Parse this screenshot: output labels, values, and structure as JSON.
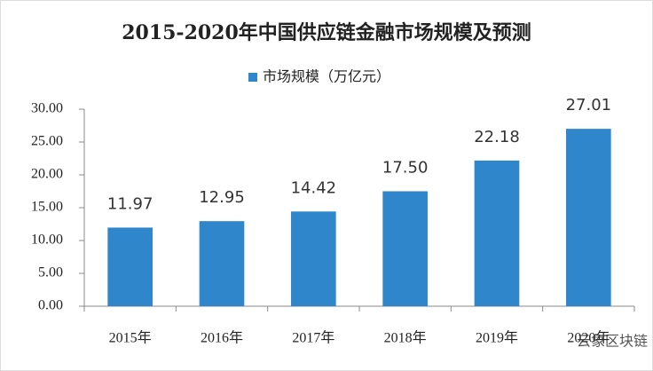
{
  "chart_data": {
    "type": "bar",
    "title": "2015-2020年中国供应链金融市场规模及预测",
    "categories": [
      "2015年",
      "2016年",
      "2017年",
      "2018年",
      "2019年",
      "2020年"
    ],
    "series": [
      {
        "name": "市场规模（万亿元）",
        "color": "#2f86cb",
        "values": [
          11.97,
          12.95,
          14.42,
          17.5,
          22.18,
          27.01
        ],
        "value_labels": [
          "11.97",
          "12.95",
          "14.42",
          "17.50",
          "22.18",
          "27.01"
        ]
      }
    ],
    "ylim": [
      0,
      30
    ],
    "yticks": [
      {
        "value": 0,
        "label": "0.00"
      },
      {
        "value": 5,
        "label": "5.00"
      },
      {
        "value": 10,
        "label": "10.00"
      },
      {
        "value": 15,
        "label": "15.00"
      },
      {
        "value": 20,
        "label": "20.00"
      },
      {
        "value": 25,
        "label": "25.00"
      },
      {
        "value": 30,
        "label": "30.00"
      }
    ],
    "watermark": "云象区块链"
  }
}
